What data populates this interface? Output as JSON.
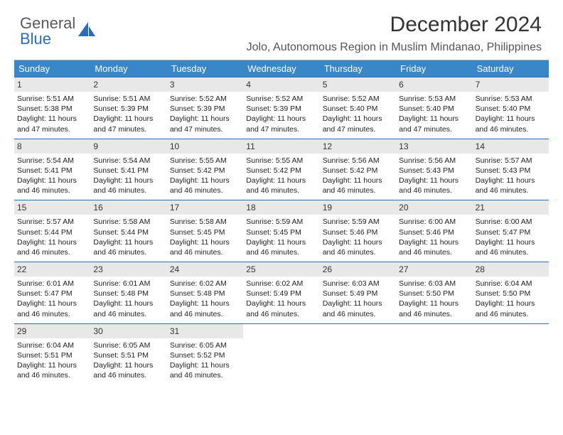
{
  "logo": {
    "line1": "General",
    "line2": "Blue"
  },
  "title": "December 2024",
  "location": "Jolo, Autonomous Region in Muslim Mindanao, Philippines",
  "colors": {
    "header_bg": "#3a87c8",
    "header_text": "#ffffff",
    "daynum_bg": "#e8e8e8",
    "week_border": "#2a6db5",
    "logo_gray": "#5a5a5a",
    "logo_blue": "#2a6db5"
  },
  "day_names": [
    "Sunday",
    "Monday",
    "Tuesday",
    "Wednesday",
    "Thursday",
    "Friday",
    "Saturday"
  ],
  "weeks": [
    [
      {
        "n": "1",
        "sr": "Sunrise: 5:51 AM",
        "ss": "Sunset: 5:38 PM",
        "dl": "Daylight: 11 hours and 47 minutes."
      },
      {
        "n": "2",
        "sr": "Sunrise: 5:51 AM",
        "ss": "Sunset: 5:39 PM",
        "dl": "Daylight: 11 hours and 47 minutes."
      },
      {
        "n": "3",
        "sr": "Sunrise: 5:52 AM",
        "ss": "Sunset: 5:39 PM",
        "dl": "Daylight: 11 hours and 47 minutes."
      },
      {
        "n": "4",
        "sr": "Sunrise: 5:52 AM",
        "ss": "Sunset: 5:39 PM",
        "dl": "Daylight: 11 hours and 47 minutes."
      },
      {
        "n": "5",
        "sr": "Sunrise: 5:52 AM",
        "ss": "Sunset: 5:40 PM",
        "dl": "Daylight: 11 hours and 47 minutes."
      },
      {
        "n": "6",
        "sr": "Sunrise: 5:53 AM",
        "ss": "Sunset: 5:40 PM",
        "dl": "Daylight: 11 hours and 47 minutes."
      },
      {
        "n": "7",
        "sr": "Sunrise: 5:53 AM",
        "ss": "Sunset: 5:40 PM",
        "dl": "Daylight: 11 hours and 46 minutes."
      }
    ],
    [
      {
        "n": "8",
        "sr": "Sunrise: 5:54 AM",
        "ss": "Sunset: 5:41 PM",
        "dl": "Daylight: 11 hours and 46 minutes."
      },
      {
        "n": "9",
        "sr": "Sunrise: 5:54 AM",
        "ss": "Sunset: 5:41 PM",
        "dl": "Daylight: 11 hours and 46 minutes."
      },
      {
        "n": "10",
        "sr": "Sunrise: 5:55 AM",
        "ss": "Sunset: 5:42 PM",
        "dl": "Daylight: 11 hours and 46 minutes."
      },
      {
        "n": "11",
        "sr": "Sunrise: 5:55 AM",
        "ss": "Sunset: 5:42 PM",
        "dl": "Daylight: 11 hours and 46 minutes."
      },
      {
        "n": "12",
        "sr": "Sunrise: 5:56 AM",
        "ss": "Sunset: 5:42 PM",
        "dl": "Daylight: 11 hours and 46 minutes."
      },
      {
        "n": "13",
        "sr": "Sunrise: 5:56 AM",
        "ss": "Sunset: 5:43 PM",
        "dl": "Daylight: 11 hours and 46 minutes."
      },
      {
        "n": "14",
        "sr": "Sunrise: 5:57 AM",
        "ss": "Sunset: 5:43 PM",
        "dl": "Daylight: 11 hours and 46 minutes."
      }
    ],
    [
      {
        "n": "15",
        "sr": "Sunrise: 5:57 AM",
        "ss": "Sunset: 5:44 PM",
        "dl": "Daylight: 11 hours and 46 minutes."
      },
      {
        "n": "16",
        "sr": "Sunrise: 5:58 AM",
        "ss": "Sunset: 5:44 PM",
        "dl": "Daylight: 11 hours and 46 minutes."
      },
      {
        "n": "17",
        "sr": "Sunrise: 5:58 AM",
        "ss": "Sunset: 5:45 PM",
        "dl": "Daylight: 11 hours and 46 minutes."
      },
      {
        "n": "18",
        "sr": "Sunrise: 5:59 AM",
        "ss": "Sunset: 5:45 PM",
        "dl": "Daylight: 11 hours and 46 minutes."
      },
      {
        "n": "19",
        "sr": "Sunrise: 5:59 AM",
        "ss": "Sunset: 5:46 PM",
        "dl": "Daylight: 11 hours and 46 minutes."
      },
      {
        "n": "20",
        "sr": "Sunrise: 6:00 AM",
        "ss": "Sunset: 5:46 PM",
        "dl": "Daylight: 11 hours and 46 minutes."
      },
      {
        "n": "21",
        "sr": "Sunrise: 6:00 AM",
        "ss": "Sunset: 5:47 PM",
        "dl": "Daylight: 11 hours and 46 minutes."
      }
    ],
    [
      {
        "n": "22",
        "sr": "Sunrise: 6:01 AM",
        "ss": "Sunset: 5:47 PM",
        "dl": "Daylight: 11 hours and 46 minutes."
      },
      {
        "n": "23",
        "sr": "Sunrise: 6:01 AM",
        "ss": "Sunset: 5:48 PM",
        "dl": "Daylight: 11 hours and 46 minutes."
      },
      {
        "n": "24",
        "sr": "Sunrise: 6:02 AM",
        "ss": "Sunset: 5:48 PM",
        "dl": "Daylight: 11 hours and 46 minutes."
      },
      {
        "n": "25",
        "sr": "Sunrise: 6:02 AM",
        "ss": "Sunset: 5:49 PM",
        "dl": "Daylight: 11 hours and 46 minutes."
      },
      {
        "n": "26",
        "sr": "Sunrise: 6:03 AM",
        "ss": "Sunset: 5:49 PM",
        "dl": "Daylight: 11 hours and 46 minutes."
      },
      {
        "n": "27",
        "sr": "Sunrise: 6:03 AM",
        "ss": "Sunset: 5:50 PM",
        "dl": "Daylight: 11 hours and 46 minutes."
      },
      {
        "n": "28",
        "sr": "Sunrise: 6:04 AM",
        "ss": "Sunset: 5:50 PM",
        "dl": "Daylight: 11 hours and 46 minutes."
      }
    ],
    [
      {
        "n": "29",
        "sr": "Sunrise: 6:04 AM",
        "ss": "Sunset: 5:51 PM",
        "dl": "Daylight: 11 hours and 46 minutes."
      },
      {
        "n": "30",
        "sr": "Sunrise: 6:05 AM",
        "ss": "Sunset: 5:51 PM",
        "dl": "Daylight: 11 hours and 46 minutes."
      },
      {
        "n": "31",
        "sr": "Sunrise: 6:05 AM",
        "ss": "Sunset: 5:52 PM",
        "dl": "Daylight: 11 hours and 46 minutes."
      },
      null,
      null,
      null,
      null
    ]
  ]
}
